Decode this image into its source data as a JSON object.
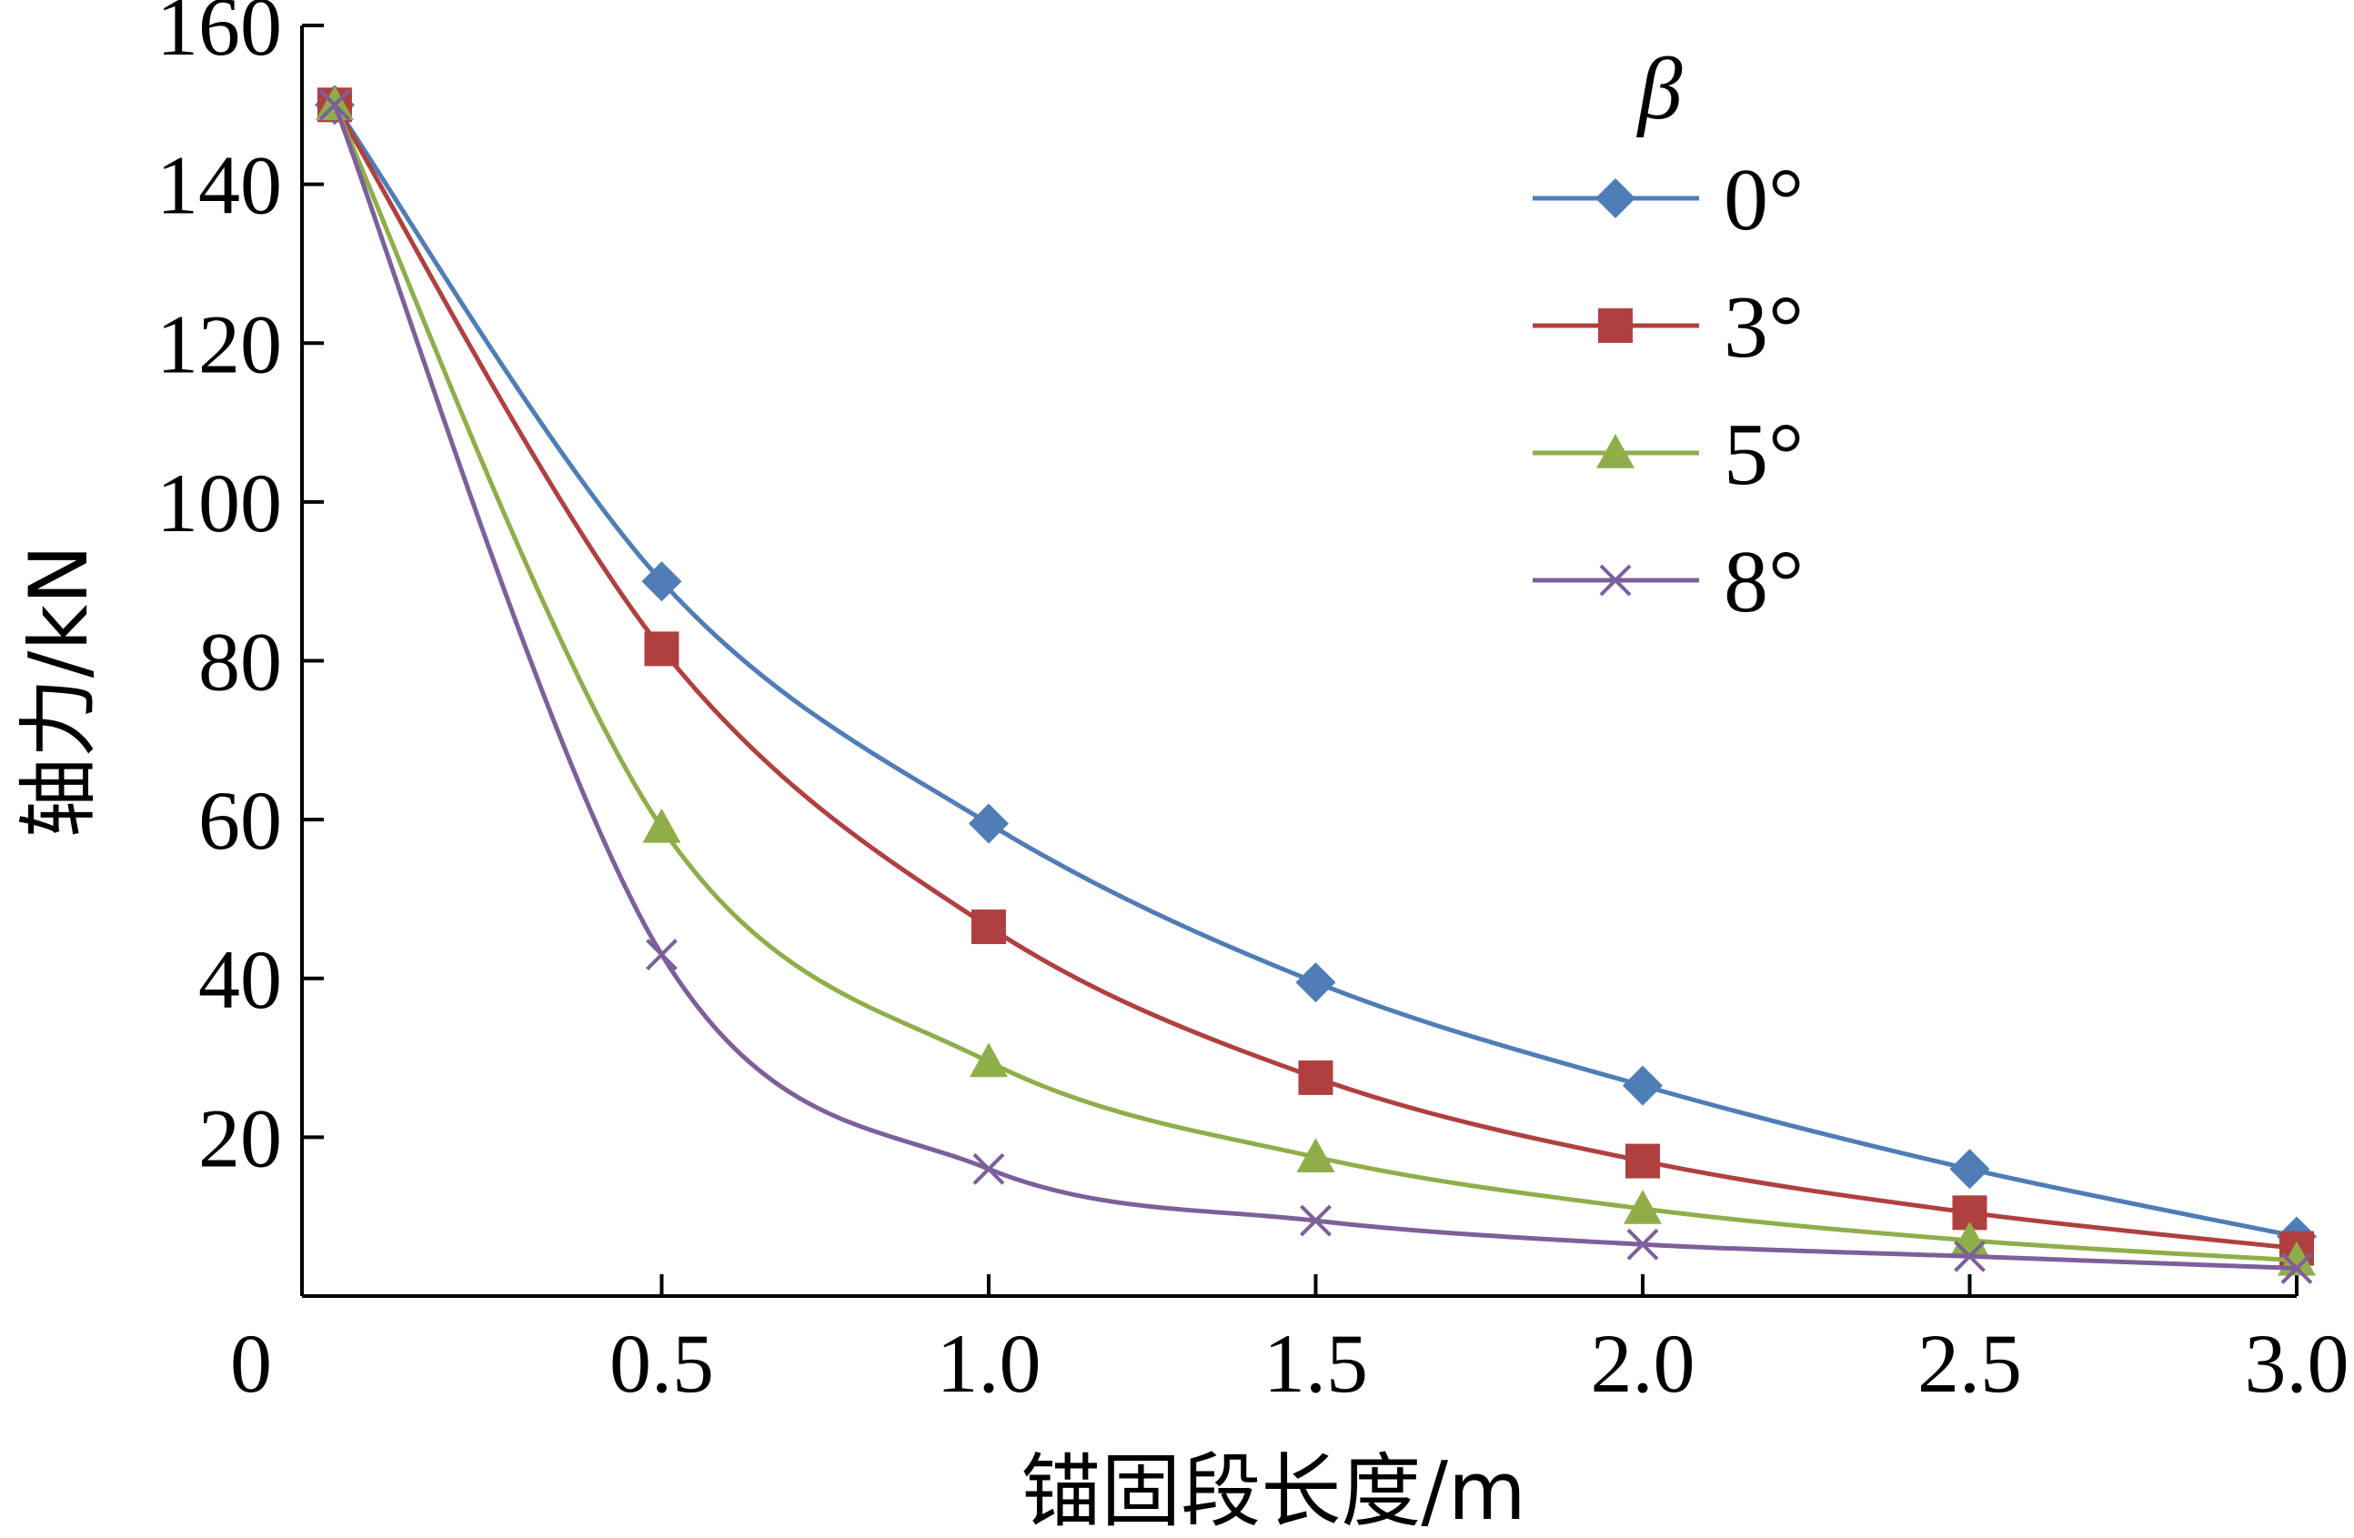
{
  "chart_data": {
    "type": "line",
    "title": "",
    "xlabel": "锚固段长度/m",
    "ylabel": "轴力/kN",
    "x_origin_label": "0",
    "xlim": [
      -0.05,
      3.0
    ],
    "ylim": [
      0,
      160
    ],
    "x_ticks": [
      0.5,
      1.0,
      1.5,
      2.0,
      2.5,
      3.0
    ],
    "x_tick_labels": [
      "0.5",
      "1.0",
      "1.5",
      "2.0",
      "2.5",
      "3.0"
    ],
    "y_ticks": [
      20,
      40,
      60,
      80,
      100,
      120,
      140,
      160
    ],
    "y_tick_labels": [
      "20",
      "40",
      "60",
      "80",
      "100",
      "120",
      "140",
      "160"
    ],
    "grid": false,
    "legend": {
      "title": "β",
      "position": "top-right"
    },
    "x": [
      0,
      0.5,
      1.0,
      1.5,
      2.0,
      2.5,
      3.0
    ],
    "series": [
      {
        "name": "0°",
        "color": "#4F7DB5",
        "marker": "diamond",
        "values": [
          150,
          90,
          59.5,
          39.5,
          26.5,
          16,
          7.5
        ]
      },
      {
        "name": "3°",
        "color": "#B04040",
        "marker": "square",
        "values": [
          150,
          81.5,
          46.5,
          27.5,
          17,
          10.5,
          6
        ]
      },
      {
        "name": "5°",
        "color": "#8FAE4A",
        "marker": "triangle",
        "values": [
          150,
          59,
          29.5,
          17.5,
          11,
          7,
          4.5
        ]
      },
      {
        "name": "8°",
        "color": "#7D5F9A",
        "marker": "cross",
        "values": [
          150,
          43,
          16,
          9.5,
          6.5,
          5,
          3.5
        ]
      }
    ]
  }
}
